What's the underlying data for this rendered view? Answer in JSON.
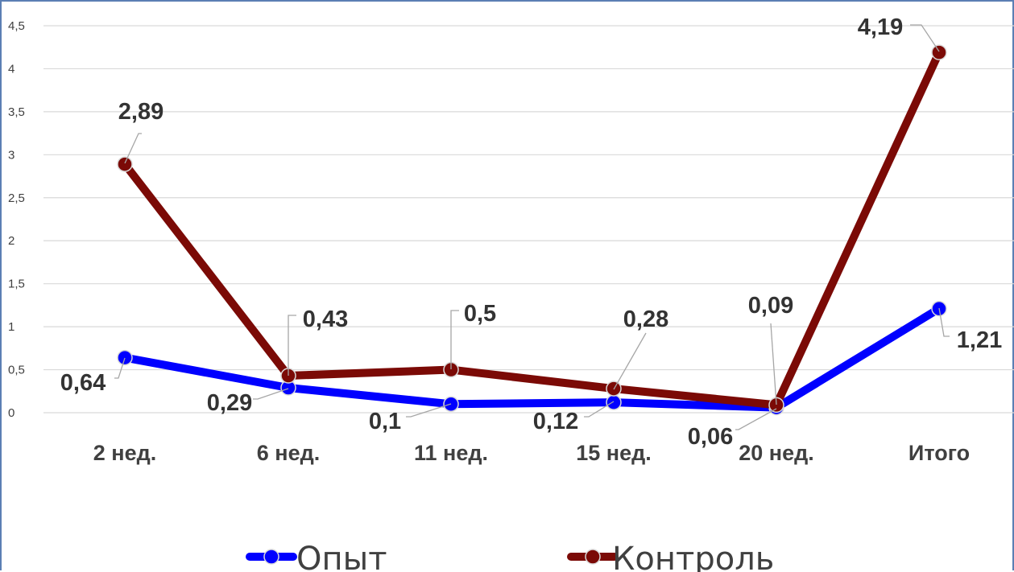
{
  "chart_data": {
    "type": "line",
    "categories": [
      "2 нед.",
      "6 нед.",
      "11 нед.",
      "15 нед.",
      "20 нед.",
      "Итого"
    ],
    "series": [
      {
        "name": "Опыт",
        "values": [
          0.64,
          0.29,
          0.1,
          0.12,
          0.06,
          1.21
        ],
        "labels": [
          "0,64",
          "0,29",
          "0,1",
          "0,12",
          "0,06",
          "1,21"
        ],
        "color": "#0000ff"
      },
      {
        "name": "Контроль",
        "values": [
          2.89,
          0.43,
          0.5,
          0.28,
          0.09,
          4.19
        ],
        "labels": [
          "2,89",
          "0,43",
          "0,5",
          "0,28",
          "0,09",
          "4,19"
        ],
        "color": "#7b0a06"
      }
    ],
    "ylim": [
      0,
      4.5
    ],
    "yticks": [
      "0",
      "0,5",
      "1",
      "1,5",
      "2",
      "2,5",
      "3",
      "3,5",
      "4",
      "4,5"
    ],
    "grid": true,
    "legend": "bottom",
    "title": "",
    "xlabel": "",
    "ylabel": ""
  }
}
